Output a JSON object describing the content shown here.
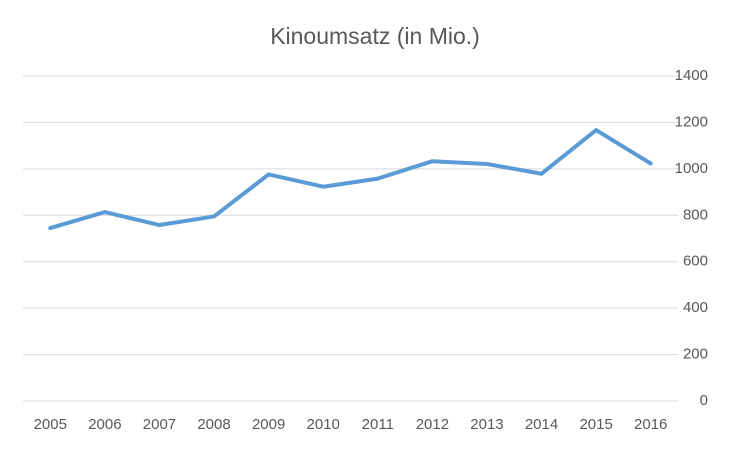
{
  "chart_data": {
    "type": "line",
    "title": "Kinoumsatz (in Mio.)",
    "categories": [
      "2005",
      "2006",
      "2007",
      "2008",
      "2009",
      "2010",
      "2011",
      "2012",
      "2013",
      "2014",
      "2015",
      "2016"
    ],
    "values": [
      745,
      814,
      758,
      795,
      976,
      923,
      958,
      1033,
      1021,
      979,
      1167,
      1023
    ],
    "color": "#5b9bd5",
    "ylim": [
      0,
      1400
    ],
    "yticks": [
      0,
      200,
      400,
      600,
      800,
      1000,
      1200,
      1400
    ],
    "grid": true,
    "y_axis_side": "right"
  }
}
